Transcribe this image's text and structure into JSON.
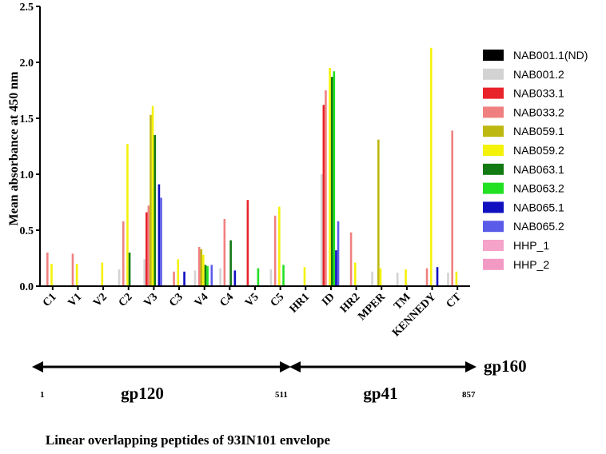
{
  "chart_data": {
    "type": "bar",
    "title": "",
    "ylabel": "Mean absorbance at 450 nm",
    "xlabel": "Linear overlapping peptides of 93IN101 envelope",
    "ylim": [
      0,
      2.5
    ],
    "yticks": [
      "0.0",
      "0.5",
      "1.0",
      "1.5",
      "2.0",
      "2.5"
    ],
    "grid": false,
    "legend_position": "right",
    "categories": [
      "C1",
      "V1",
      "V2",
      "C2",
      "V3",
      "C3",
      "V4",
      "C4",
      "V5",
      "C5",
      "HR1",
      "ID",
      "HR2",
      "MPER",
      "TM",
      "KENNEDY",
      "CT"
    ],
    "series": [
      {
        "name": "NAB001.1(ND)",
        "color": "#000000",
        "values": [
          0,
          0,
          0,
          0,
          0,
          0,
          0,
          0,
          0,
          0,
          0,
          0,
          0,
          0,
          0,
          0,
          0
        ]
      },
      {
        "name": "NAB001.2",
        "color": "#d3d3d3",
        "values": [
          0,
          0,
          0,
          0.15,
          0.24,
          0,
          0.14,
          0.16,
          0,
          0.15,
          0,
          1.0,
          0,
          0.13,
          0.12,
          0,
          0.12
        ]
      },
      {
        "name": "NAB033.1",
        "color": "#e8232a",
        "values": [
          0,
          0,
          0,
          0,
          0.66,
          0,
          0,
          0,
          0.77,
          0,
          0,
          1.62,
          0,
          0,
          0,
          0,
          0
        ]
      },
      {
        "name": "NAB033.2",
        "color": "#f08080",
        "values": [
          0.3,
          0.29,
          0,
          0.58,
          0.72,
          0.13,
          0.35,
          0.6,
          0,
          0.63,
          0,
          1.75,
          0.48,
          0,
          0,
          0.16,
          1.39
        ]
      },
      {
        "name": "NAB059.1",
        "color": "#bdb80f",
        "values": [
          0,
          0,
          0,
          0,
          1.53,
          0,
          0.33,
          0,
          0,
          0,
          0,
          0,
          0,
          1.31,
          0,
          0,
          0
        ]
      },
      {
        "name": "NAB059.2",
        "color": "#f5f20a",
        "values": [
          0.2,
          0.2,
          0.21,
          1.27,
          1.61,
          0.24,
          0.28,
          0,
          0,
          0.71,
          0.17,
          1.95,
          0.21,
          0.16,
          0.15,
          2.13,
          0.13
        ]
      },
      {
        "name": "NAB063.1",
        "color": "#127a12",
        "values": [
          0,
          0,
          0,
          0.3,
          1.35,
          0,
          0.19,
          0.41,
          0,
          0,
          0,
          1.87,
          0,
          0,
          0,
          0,
          0
        ]
      },
      {
        "name": "NAB063.2",
        "color": "#22e022",
        "values": [
          0,
          0,
          0,
          0,
          0,
          0,
          0.18,
          0,
          0.16,
          0.19,
          0,
          1.92,
          0,
          0,
          0,
          0,
          0
        ]
      },
      {
        "name": "NAB065.1",
        "color": "#1010c0",
        "values": [
          0,
          0,
          0,
          0,
          0.91,
          0.13,
          0,
          0.14,
          0,
          0,
          0,
          0.32,
          0,
          0,
          0,
          0.17,
          0
        ]
      },
      {
        "name": "NAB065.2",
        "color": "#5b5bea",
        "values": [
          0,
          0,
          0,
          0,
          0.79,
          0,
          0.19,
          0,
          0,
          0,
          0,
          0.58,
          0,
          0,
          0,
          0,
          0
        ]
      },
      {
        "name": "HHP_1",
        "color": "#f5a3c8",
        "values": [
          0,
          0,
          0,
          0,
          0,
          0,
          0,
          0,
          0,
          0,
          0,
          0,
          0,
          0,
          0,
          0,
          0
        ]
      },
      {
        "name": "HHP_2",
        "color": "#f39ac4",
        "values": [
          0,
          0,
          0,
          0,
          0,
          0,
          0,
          0,
          0,
          0,
          0,
          0,
          0,
          0,
          0,
          0,
          0
        ]
      }
    ],
    "annotations": {
      "gp160_label": "gp160",
      "gp120_label": "gp120",
      "gp41_label": "gp41",
      "pos_start": "1",
      "pos_mid": "511",
      "pos_end": "857"
    }
  }
}
